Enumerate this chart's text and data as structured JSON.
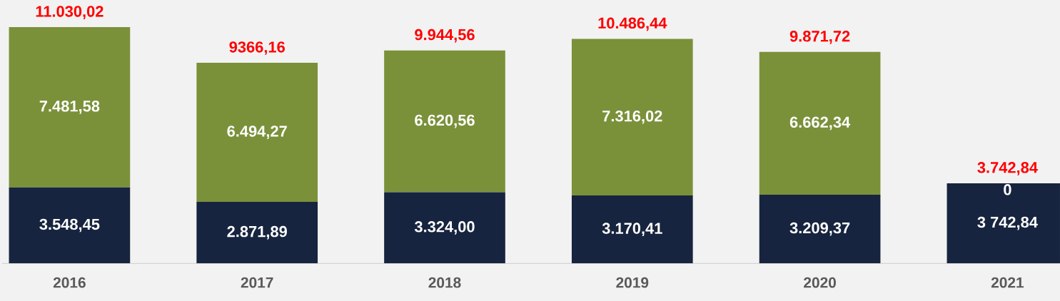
{
  "chart_data": {
    "type": "bar",
    "stacked": true,
    "categories": [
      "2016",
      "2017",
      "2018",
      "2019",
      "2020",
      "2021"
    ],
    "series": [
      {
        "color": "#17243f",
        "values": [
          3548.45,
          2871.89,
          3324.0,
          3170.41,
          3209.37,
          3742.84
        ],
        "value_labels": [
          "3.548,45",
          "2.871,89",
          "3.324,00",
          "3.170,41",
          "3.209,37",
          "3 742,84"
        ]
      },
      {
        "color": "#7a913a",
        "values": [
          7481.58,
          6494.27,
          6620.56,
          7316.02,
          6662.34,
          0
        ],
        "value_labels": [
          "7.481,58",
          "6.494,27",
          "6.620,56",
          "7.316,02",
          "6.662,34",
          "0"
        ]
      }
    ],
    "totals": [
      "11.030,02",
      "9366,16",
      "9.944,56",
      "10.486,44",
      "9.871,72",
      "3.742,84"
    ]
  }
}
